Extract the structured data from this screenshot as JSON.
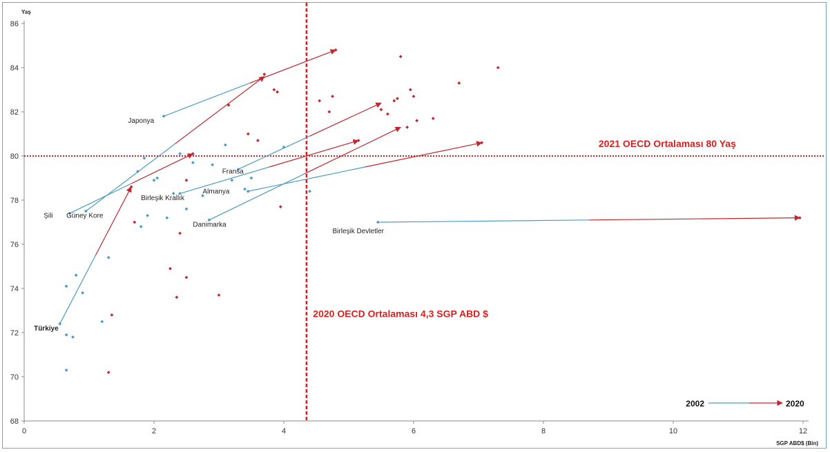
{
  "chart_data": {
    "type": "scatter",
    "xlabel": "SGP ABD$ (Bin)",
    "ylabel": "Yaş",
    "xlim": [
      0,
      12
    ],
    "ylim": [
      68,
      86
    ],
    "x_ticks": [
      "0",
      "2",
      "4",
      "6",
      "8",
      "10",
      "12"
    ],
    "y_ticks": [
      "68",
      "70",
      "72",
      "74",
      "76",
      "78",
      "80",
      "82",
      "84",
      "86"
    ],
    "colors": {
      "2002": "#4a9bc4",
      "2020": "#c1272d",
      "reference": "#d42020",
      "turkiye_label": "#d42020"
    },
    "series": [
      {
        "name": "2002",
        "points": [
          [
            0.55,
            72.4
          ],
          [
            0.7,
            77.4
          ],
          [
            0.95,
            77.5
          ],
          [
            0.65,
            74.1
          ],
          [
            0.8,
            74.6
          ],
          [
            0.9,
            73.8
          ],
          [
            0.65,
            71.9
          ],
          [
            0.75,
            71.8
          ],
          [
            0.65,
            70.3
          ],
          [
            1.2,
            72.5
          ],
          [
            1.3,
            75.4
          ],
          [
            1.75,
            79.3
          ],
          [
            1.85,
            79.9
          ],
          [
            1.8,
            76.8
          ],
          [
            1.9,
            77.3
          ],
          [
            2.0,
            78.9
          ],
          [
            2.05,
            79.0
          ],
          [
            2.15,
            81.8
          ],
          [
            2.2,
            77.2
          ],
          [
            2.3,
            78.3
          ],
          [
            2.4,
            78.3
          ],
          [
            2.4,
            80.1
          ],
          [
            2.5,
            77.6
          ],
          [
            2.6,
            79.7
          ],
          [
            2.75,
            78.2
          ],
          [
            2.85,
            77.1
          ],
          [
            2.9,
            79.6
          ],
          [
            3.1,
            80.5
          ],
          [
            3.2,
            78.9
          ],
          [
            3.3,
            79.4
          ],
          [
            3.4,
            78.5
          ],
          [
            3.45,
            78.4
          ],
          [
            3.5,
            79.0
          ],
          [
            4.0,
            80.4
          ],
          [
            4.4,
            78.4
          ],
          [
            5.45,
            77.0
          ]
        ]
      },
      {
        "name": "2020",
        "points": [
          [
            1.35,
            72.8
          ],
          [
            1.3,
            70.2
          ],
          [
            1.65,
            78.6
          ],
          [
            1.7,
            77.0
          ],
          [
            2.25,
            74.9
          ],
          [
            2.35,
            73.6
          ],
          [
            2.4,
            76.5
          ],
          [
            2.5,
            74.5
          ],
          [
            2.5,
            78.9
          ],
          [
            2.6,
            80.1
          ],
          [
            3.0,
            73.7
          ],
          [
            3.15,
            82.3
          ],
          [
            3.45,
            81.0
          ],
          [
            3.6,
            80.7
          ],
          [
            3.7,
            83.7
          ],
          [
            3.85,
            83.0
          ],
          [
            3.9,
            82.9
          ],
          [
            3.95,
            77.7
          ],
          [
            4.55,
            82.5
          ],
          [
            4.7,
            82.0
          ],
          [
            4.75,
            82.7
          ],
          [
            4.8,
            84.8
          ],
          [
            5.15,
            80.7
          ],
          [
            5.5,
            82.1
          ],
          [
            5.6,
            81.9
          ],
          [
            5.7,
            82.5
          ],
          [
            5.75,
            82.6
          ],
          [
            5.8,
            84.5
          ],
          [
            5.9,
            81.3
          ],
          [
            5.95,
            83.0
          ],
          [
            6.0,
            82.7
          ],
          [
            6.05,
            81.6
          ],
          [
            6.3,
            81.7
          ],
          [
            6.7,
            83.3
          ],
          [
            7.05,
            80.6
          ],
          [
            7.3,
            84.0
          ],
          [
            11.95,
            77.2
          ]
        ]
      }
    ],
    "arrows": [
      {
        "country": "Türkiye",
        "from": [
          0.55,
          72.4
        ],
        "to": [
          1.65,
          78.6
        ]
      },
      {
        "country": "Şili",
        "from": [
          0.7,
          77.4
        ],
        "to": [
          2.6,
          80.1
        ]
      },
      {
        "country": "Güney Kore",
        "from": [
          0.95,
          77.5
        ],
        "to": [
          3.7,
          83.6
        ]
      },
      {
        "country": "Japonya",
        "from": [
          2.15,
          81.8
        ],
        "to": [
          4.8,
          84.8
        ]
      },
      {
        "country": "Birleşik Krallık",
        "from": [
          2.4,
          78.3
        ],
        "to": [
          5.15,
          80.7
        ]
      },
      {
        "country": "Fransa",
        "from": [
          3.3,
          79.4
        ],
        "to": [
          5.5,
          82.4
        ]
      },
      {
        "country": "Almanya",
        "from": [
          3.45,
          78.4
        ],
        "to": [
          7.05,
          80.6
        ]
      },
      {
        "country": "Danimarka",
        "from": [
          2.85,
          77.1
        ],
        "to": [
          5.8,
          81.3
        ]
      },
      {
        "country": "Birleşik Devletler",
        "from": [
          5.45,
          77.0
        ],
        "to": [
          11.95,
          77.2
        ]
      }
    ],
    "country_labels": [
      {
        "text": "Türkiye",
        "x": 0.15,
        "y": 72.1,
        "highlight": true
      },
      {
        "text": "Şili",
        "x": 0.3,
        "y": 77.2
      },
      {
        "text": "Güney Kore",
        "x": 0.65,
        "y": 77.2
      },
      {
        "text": "Japonya",
        "x": 1.6,
        "y": 81.5
      },
      {
        "text": "Birleşik Krallık",
        "x": 1.8,
        "y": 78.0
      },
      {
        "text": "Fransa",
        "x": 3.05,
        "y": 79.2
      },
      {
        "text": "Almanya",
        "x": 2.75,
        "y": 78.3
      },
      {
        "text": "Danimarka",
        "x": 2.6,
        "y": 76.8
      },
      {
        "text": "Birleşik Devletler",
        "x": 4.75,
        "y": 76.5
      }
    ],
    "reference_lines": [
      {
        "orientation": "horizontal",
        "value": 80,
        "label": "2021 OECD Ortalaması 80 Yaş",
        "label_pos": [
          8.85,
          80.4
        ]
      },
      {
        "orientation": "vertical",
        "value": 4.35,
        "label": "2020 OECD Ortalaması 4,3 SGP ABD $",
        "label_pos": [
          4.45,
          72.7
        ]
      }
    ],
    "legend": {
      "from_label": "2002",
      "to_label": "2020",
      "placement": "bottom-right"
    }
  }
}
